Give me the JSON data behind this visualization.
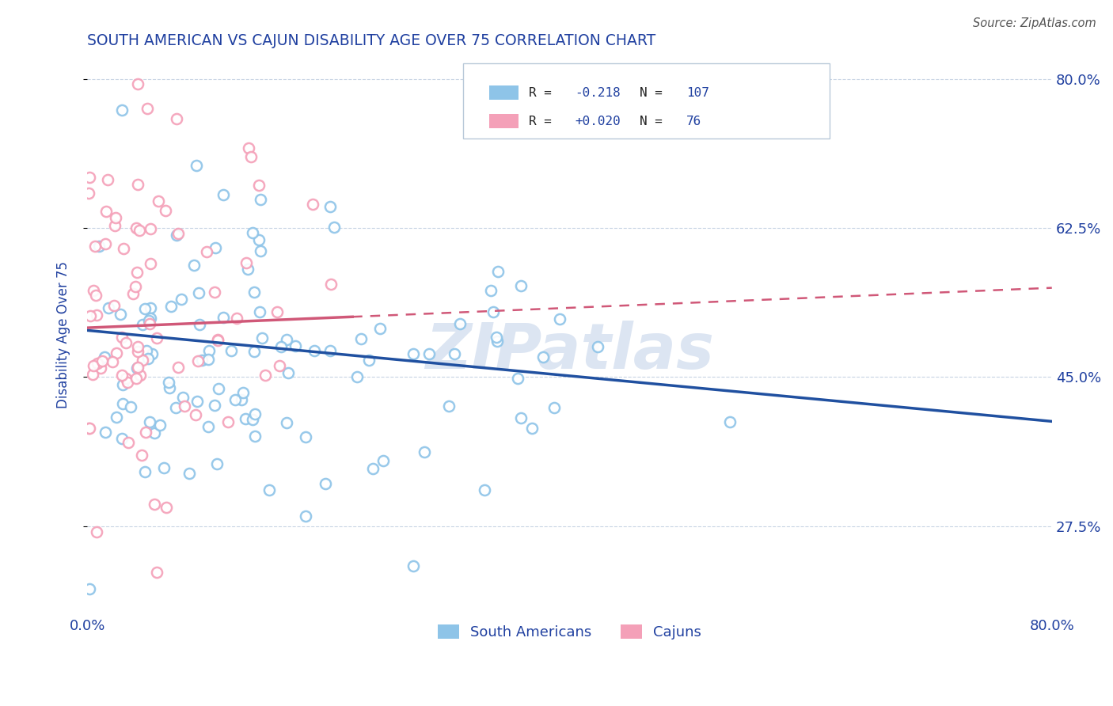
{
  "title": "SOUTH AMERICAN VS CAJUN DISABILITY AGE OVER 75 CORRELATION CHART",
  "source_text": "Source: ZipAtlas.com",
  "ylabel": "Disability Age Over 75",
  "xlim": [
    0.0,
    0.8
  ],
  "ylim": [
    0.175,
    0.825
  ],
  "yticks": [
    0.275,
    0.45,
    0.625,
    0.8
  ],
  "ytick_labels": [
    "27.5%",
    "45.0%",
    "62.5%",
    "80.0%"
  ],
  "xticks": [
    0.0,
    0.8
  ],
  "xtick_labels": [
    "0.0%",
    "80.0%"
  ],
  "blue_R": -0.218,
  "blue_N": 107,
  "pink_R": 0.02,
  "pink_N": 76,
  "blue_color": "#8ec4e8",
  "pink_color": "#f4a0b8",
  "blue_edge_color": "#6aaad4",
  "pink_edge_color": "#e080a0",
  "blue_line_color": "#2050a0",
  "pink_line_color": "#d05878",
  "legend_label_blue": "South Americans",
  "legend_label_pink": "Cajuns",
  "title_color": "#2040a0",
  "axis_label_color": "#2040a0",
  "tick_color": "#2040a0",
  "watermark": "ZIPatlas",
  "watermark_color": "#c0d0e8",
  "background_color": "#ffffff",
  "grid_color": "#c8d4e4",
  "blue_trend_start_y": 0.505,
  "blue_trend_end_y": 0.398,
  "pink_trend_start_y": 0.508,
  "pink_trend_end_y": 0.555
}
